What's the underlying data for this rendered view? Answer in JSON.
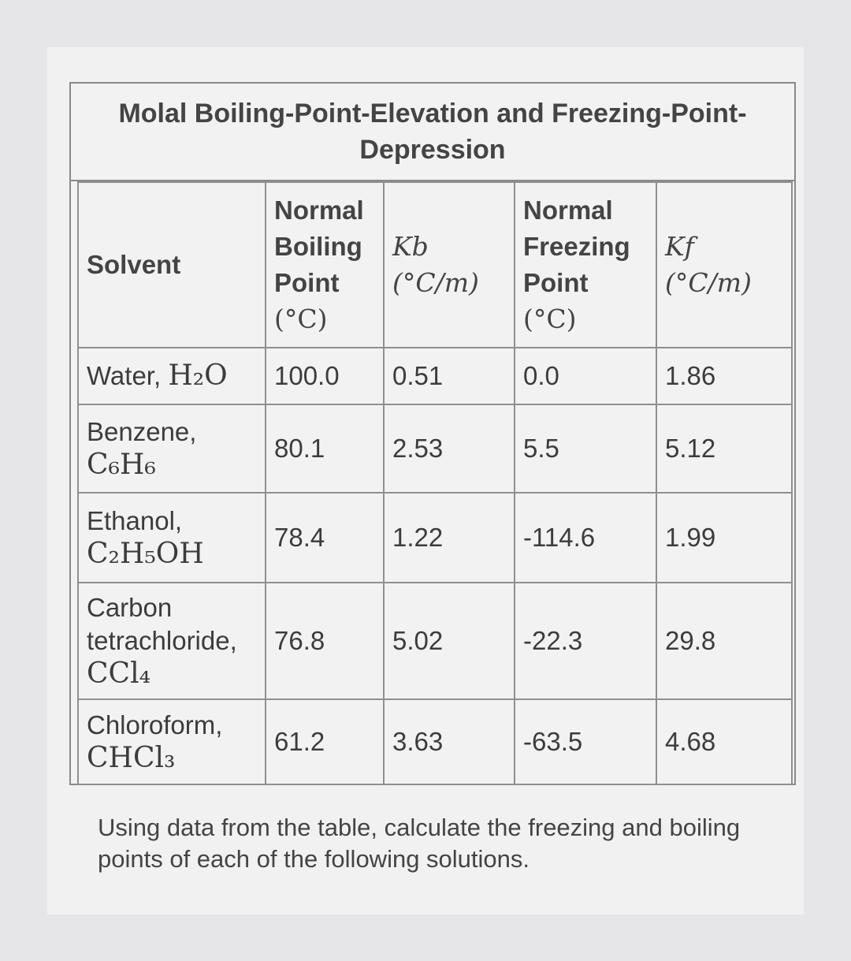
{
  "title": "Molal Boiling-Point-Elevation and Freezing-Point-Depression",
  "headers": {
    "solvent": "Solvent",
    "bp_l1": "Normal",
    "bp_l2": "Boiling",
    "bp_l3": "Point",
    "bp_unit": "(°C)",
    "kb_sym": "Kb",
    "kb_unit": "(°C/m)",
    "fp_l1": "Normal",
    "fp_l2": "Freezing",
    "fp_l3": "Point",
    "fp_unit": "(°C)",
    "kf_sym": "Kf",
    "kf_unit": "(°C/m)"
  },
  "rows": [
    {
      "name": "Water,",
      "formula": "H₂O",
      "bp": "100.0",
      "kb": "0.51",
      "fp": "0.0",
      "kf": "1.86"
    },
    {
      "name": "Benzene,",
      "formula": "C₆H₆",
      "bp": "80.1",
      "kb": "2.53",
      "fp": "5.5",
      "kf": "5.12"
    },
    {
      "name": "Ethanol,",
      "formula": "C₂H₅OH",
      "bp": "78.4",
      "kb": "1.22",
      "fp": "-114.6",
      "kf": "1.99"
    },
    {
      "name": "Carbon",
      "name2": "tetrachloride,",
      "formula": "CCl₄",
      "bp": "76.8",
      "kb": "5.02",
      "fp": "-22.3",
      "kf": "29.8"
    },
    {
      "name": "Chloroform,",
      "formula": "CHCl₃",
      "bp": "61.2",
      "kb": "3.63",
      "fp": "-63.5",
      "kf": "4.68"
    }
  ],
  "caption": "Using data from the table, calculate the freezing and boiling points of each of the following solutions."
}
